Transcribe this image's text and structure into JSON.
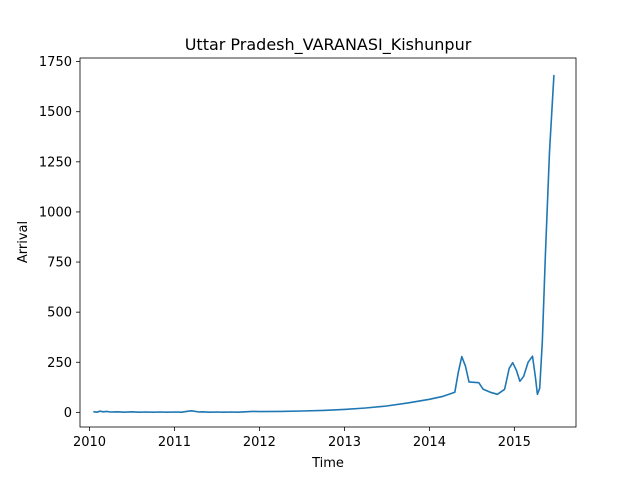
{
  "chart_data": {
    "type": "line",
    "title": "Uttar Pradesh_VARANASI_Kishunpur",
    "xlabel": "Time",
    "ylabel": "Arrival",
    "xlim": [
      "2009-11-21",
      "2015-09-23"
    ],
    "ylim": [
      -73,
      1768
    ],
    "x_ticks": [
      {
        "value": "2010-01-01",
        "label": "2010"
      },
      {
        "value": "2011-01-01",
        "label": "2011"
      },
      {
        "value": "2012-01-01",
        "label": "2012"
      },
      {
        "value": "2013-01-01",
        "label": "2013"
      },
      {
        "value": "2014-01-01",
        "label": "2014"
      },
      {
        "value": "2015-01-01",
        "label": "2015"
      }
    ],
    "y_ticks": [
      {
        "value": 0,
        "label": "0"
      },
      {
        "value": 250,
        "label": "250"
      },
      {
        "value": 500,
        "label": "500"
      },
      {
        "value": 750,
        "label": "750"
      },
      {
        "value": 1000,
        "label": "1000"
      },
      {
        "value": 1250,
        "label": "1250"
      },
      {
        "value": 1500,
        "label": "1500"
      },
      {
        "value": 1750,
        "label": "1750"
      }
    ],
    "grid": false,
    "series": [
      {
        "color": "#1f77b4",
        "points": [
          [
            "2010-01-20",
            3
          ],
          [
            "2010-02-01",
            1
          ],
          [
            "2010-02-15",
            6
          ],
          [
            "2010-03-01",
            3
          ],
          [
            "2010-03-15",
            5
          ],
          [
            "2010-04-01",
            2
          ],
          [
            "2010-05-01",
            3
          ],
          [
            "2010-06-01",
            1
          ],
          [
            "2010-07-01",
            3
          ],
          [
            "2010-08-01",
            1
          ],
          [
            "2010-09-01",
            2
          ],
          [
            "2010-10-01",
            1
          ],
          [
            "2010-11-01",
            2
          ],
          [
            "2010-12-01",
            1
          ],
          [
            "2011-01-01",
            2
          ],
          [
            "2011-02-01",
            1
          ],
          [
            "2011-03-01",
            6
          ],
          [
            "2011-03-15",
            8
          ],
          [
            "2011-04-01",
            5
          ],
          [
            "2011-04-15",
            2
          ],
          [
            "2011-05-01",
            3
          ],
          [
            "2011-06-01",
            1
          ],
          [
            "2011-07-01",
            2
          ],
          [
            "2011-08-01",
            1
          ],
          [
            "2011-09-01",
            2
          ],
          [
            "2011-10-01",
            1
          ],
          [
            "2011-11-01",
            3
          ],
          [
            "2011-12-01",
            5
          ],
          [
            "2012-01-01",
            4
          ],
          [
            "2012-04-01",
            5
          ],
          [
            "2012-07-01",
            7
          ],
          [
            "2012-10-01",
            10
          ],
          [
            "2013-01-01",
            15
          ],
          [
            "2013-04-01",
            22
          ],
          [
            "2013-07-01",
            32
          ],
          [
            "2013-10-01",
            47
          ],
          [
            "2014-01-01",
            65
          ],
          [
            "2014-03-01",
            80
          ],
          [
            "2014-04-20",
            100
          ],
          [
            "2014-05-05",
            200
          ],
          [
            "2014-05-20",
            278
          ],
          [
            "2014-06-05",
            230
          ],
          [
            "2014-06-20",
            152
          ],
          [
            "2014-07-10",
            150
          ],
          [
            "2014-08-01",
            148
          ],
          [
            "2014-08-20",
            115
          ],
          [
            "2014-09-20",
            100
          ],
          [
            "2014-10-20",
            90
          ],
          [
            "2014-11-20",
            115
          ],
          [
            "2014-12-10",
            220
          ],
          [
            "2014-12-25",
            248
          ],
          [
            "2015-01-10",
            210
          ],
          [
            "2015-01-25",
            155
          ],
          [
            "2015-02-10",
            180
          ],
          [
            "2015-03-01",
            250
          ],
          [
            "2015-03-20",
            280
          ],
          [
            "2015-04-01",
            180
          ],
          [
            "2015-04-10",
            90
          ],
          [
            "2015-04-20",
            120
          ],
          [
            "2015-05-01",
            350
          ],
          [
            "2015-05-15",
            800
          ],
          [
            "2015-06-01",
            1300
          ],
          [
            "2015-06-20",
            1680
          ]
        ]
      }
    ]
  }
}
